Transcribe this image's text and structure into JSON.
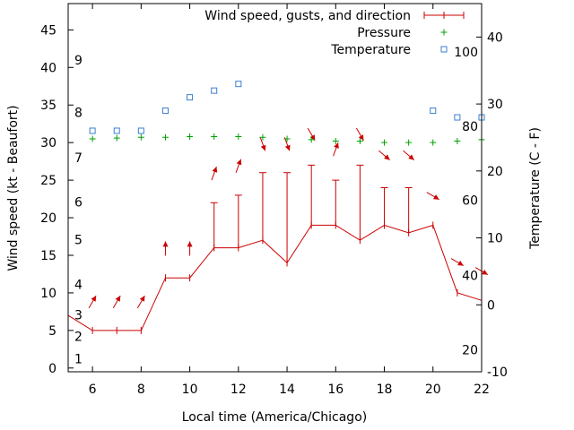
{
  "chart_data": {
    "type": "line",
    "xlabel": "Local time (America/Chicago)",
    "ylabel": "Wind speed (kt - Beaufort)",
    "y2label": "Temperature (C - F)",
    "xlim": [
      5,
      22
    ],
    "ylim": [
      -0.5,
      48.5
    ],
    "y2lim": [
      -10,
      45
    ],
    "xticks": [
      6,
      8,
      10,
      12,
      14,
      16,
      18,
      20,
      22
    ],
    "yticks": [
      0,
      5,
      10,
      15,
      20,
      25,
      30,
      35,
      40,
      45
    ],
    "y2ticks": [
      -10,
      0,
      10,
      20,
      30,
      40
    ],
    "beaufort_labels": [
      {
        "label": "1",
        "kt": 1.2
      },
      {
        "label": "2",
        "kt": 4.2
      },
      {
        "label": "3",
        "kt": 7.1
      },
      {
        "label": "4",
        "kt": 11.1
      },
      {
        "label": "5",
        "kt": 17.1
      },
      {
        "label": "6",
        "kt": 22.1
      },
      {
        "label": "7",
        "kt": 28.0
      },
      {
        "label": "8",
        "kt": 34.0
      },
      {
        "label": "9",
        "kt": 41.0
      }
    ],
    "fahrenheit_labels": [
      {
        "label": "20",
        "c": -6.7
      },
      {
        "label": "40",
        "c": 4.4
      },
      {
        "label": "60",
        "c": 15.6
      },
      {
        "label": "80",
        "c": 26.7
      },
      {
        "label": "100",
        "c": 37.8
      }
    ],
    "legend": {
      "placement": "top-right",
      "entries": [
        "Wind speed, gusts, and direction",
        "Pressure",
        "Temperature"
      ]
    },
    "series": [
      {
        "name": "Wind speed, gusts, and direction",
        "kind": "wind",
        "x": [
          5,
          6,
          7,
          8,
          9,
          10,
          11,
          12,
          13,
          14,
          15,
          16,
          17,
          18,
          19,
          20,
          21,
          22
        ],
        "values": [
          7,
          5,
          5,
          5,
          12,
          12,
          16,
          16,
          17,
          14,
          19,
          19,
          17,
          19,
          18,
          19,
          10,
          9
        ],
        "gusts": [
          null,
          null,
          null,
          null,
          null,
          null,
          22,
          23,
          26,
          26,
          27,
          25,
          27,
          24,
          24,
          null,
          null,
          null
        ],
        "arrow_x": [
          6,
          7,
          8,
          9,
          10,
          11,
          12,
          13,
          14,
          15,
          16,
          17,
          18,
          19,
          20,
          21,
          22
        ],
        "arrow_kt": [
          8.8,
          8.8,
          8.8,
          15.9,
          15.9,
          25.9,
          26.9,
          29.8,
          29.8,
          31.1,
          29.1,
          31.1,
          28.3,
          28.3,
          22.9,
          14.1,
          12.9
        ],
        "arrow_dir_deg": [
          210,
          210,
          210,
          180,
          180,
          200,
          200,
          340,
          340,
          330,
          200,
          330,
          310,
          310,
          300,
          300,
          300
        ]
      },
      {
        "name": "Pressure",
        "kind": "points-plus",
        "x": [
          6,
          7,
          8,
          9,
          10,
          11,
          12,
          13,
          14,
          15,
          16,
          17,
          18,
          19,
          20,
          21,
          22
        ],
        "values": [
          30.5,
          30.6,
          30.7,
          30.7,
          30.8,
          30.8,
          30.8,
          30.7,
          30.5,
          30.4,
          30.2,
          30.2,
          30.0,
          30.0,
          30.0,
          30.2,
          30.4
        ]
      },
      {
        "name": "Temperature",
        "kind": "points-square",
        "axis": "y2",
        "x": [
          6,
          7,
          8,
          9,
          10,
          11,
          12,
          20,
          21,
          22
        ],
        "values": [
          26,
          26,
          26,
          29,
          31,
          32,
          33,
          29,
          28,
          28
        ]
      }
    ]
  }
}
